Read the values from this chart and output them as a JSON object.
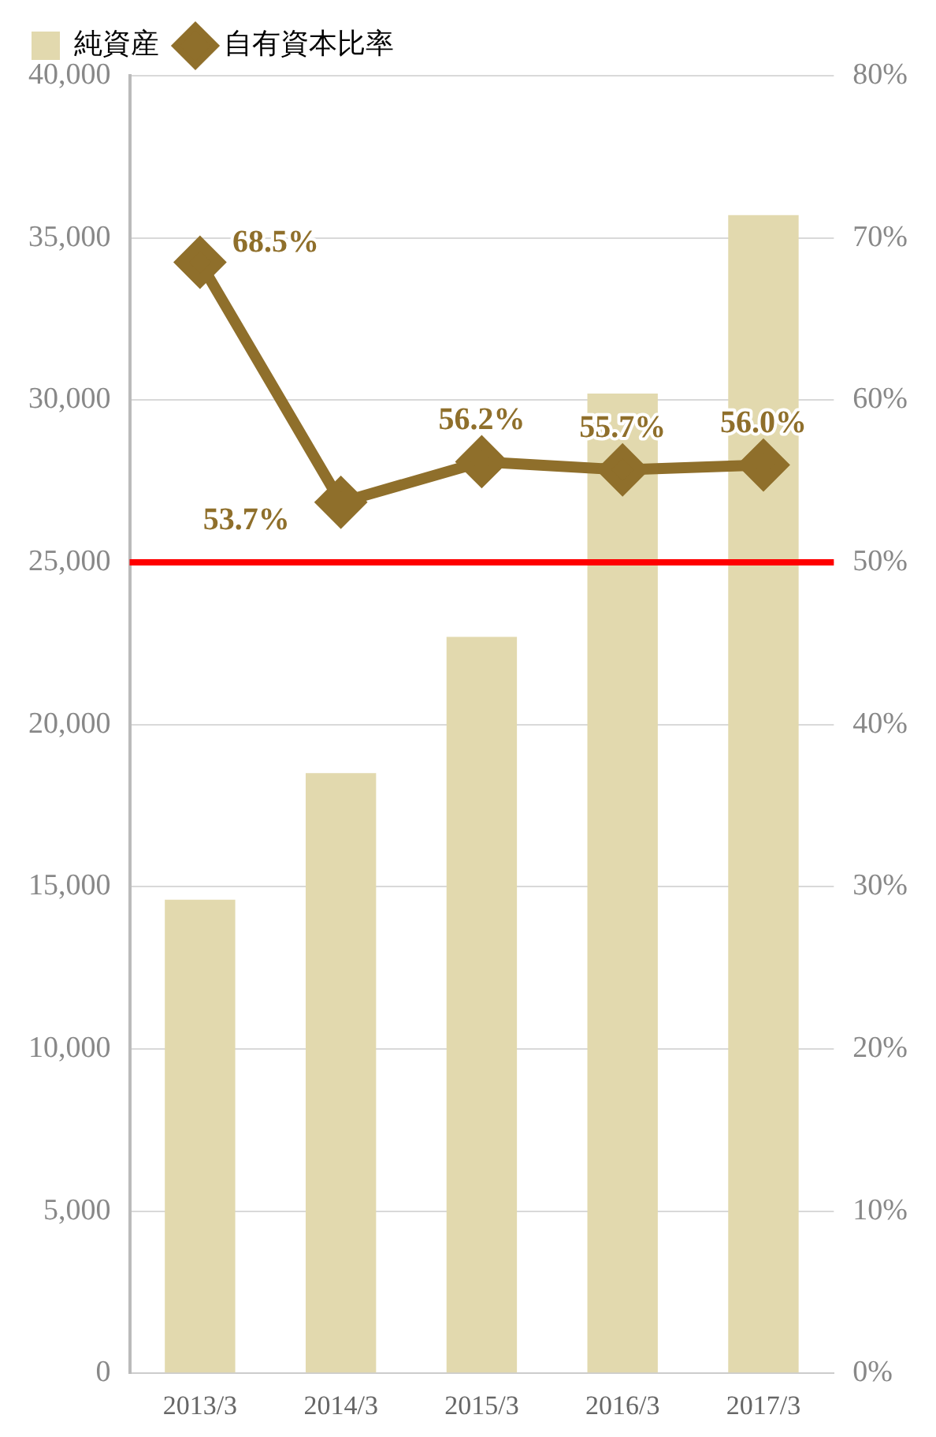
{
  "chart_data": {
    "type": "bar",
    "categories": [
      "2013/3",
      "2014/3",
      "2015/3",
      "2016/3",
      "2017/3"
    ],
    "series": [
      {
        "name": "純資産",
        "color": "#e2d9ae",
        "values": [
          14600,
          18500,
          22700,
          30200,
          35700
        ]
      },
      {
        "name": "自有資本比率",
        "type": "line",
        "axis": "y2",
        "color": "#8f6f2b",
        "values": [
          68.5,
          53.7,
          56.2,
          55.7,
          56.0
        ],
        "value_labels": [
          "68.5%",
          "53.7%",
          "56.2%",
          "55.7%",
          "56.0%"
        ]
      }
    ],
    "ylim": [
      0,
      40000
    ],
    "yticks": [
      {
        "value": 0,
        "label": "0"
      },
      {
        "value": 5000,
        "label": "5,000"
      },
      {
        "value": 10000,
        "label": "10,000"
      },
      {
        "value": 15000,
        "label": "15,000"
      },
      {
        "value": 20000,
        "label": "20,000"
      },
      {
        "value": 25000,
        "label": "25,000"
      },
      {
        "value": 30000,
        "label": "30,000"
      },
      {
        "value": 35000,
        "label": "35,000"
      },
      {
        "value": 40000,
        "label": "40,000"
      }
    ],
    "y2lim": [
      0,
      80
    ],
    "y2ticks": [
      {
        "value": 0,
        "label": "0%"
      },
      {
        "value": 10,
        "label": "10%"
      },
      {
        "value": 20,
        "label": "20%"
      },
      {
        "value": 30,
        "label": "30%"
      },
      {
        "value": 40,
        "label": "40%"
      },
      {
        "value": 50,
        "label": "50%"
      },
      {
        "value": 60,
        "label": "60%"
      },
      {
        "value": 70,
        "label": "70%"
      },
      {
        "value": 80,
        "label": "80%"
      }
    ],
    "ref_lines": [
      {
        "axis": "y2",
        "value": 50,
        "color": "#ff0000"
      }
    ],
    "grid": "y",
    "legend": "top left",
    "marker": "diamond",
    "line_style": "solid"
  }
}
